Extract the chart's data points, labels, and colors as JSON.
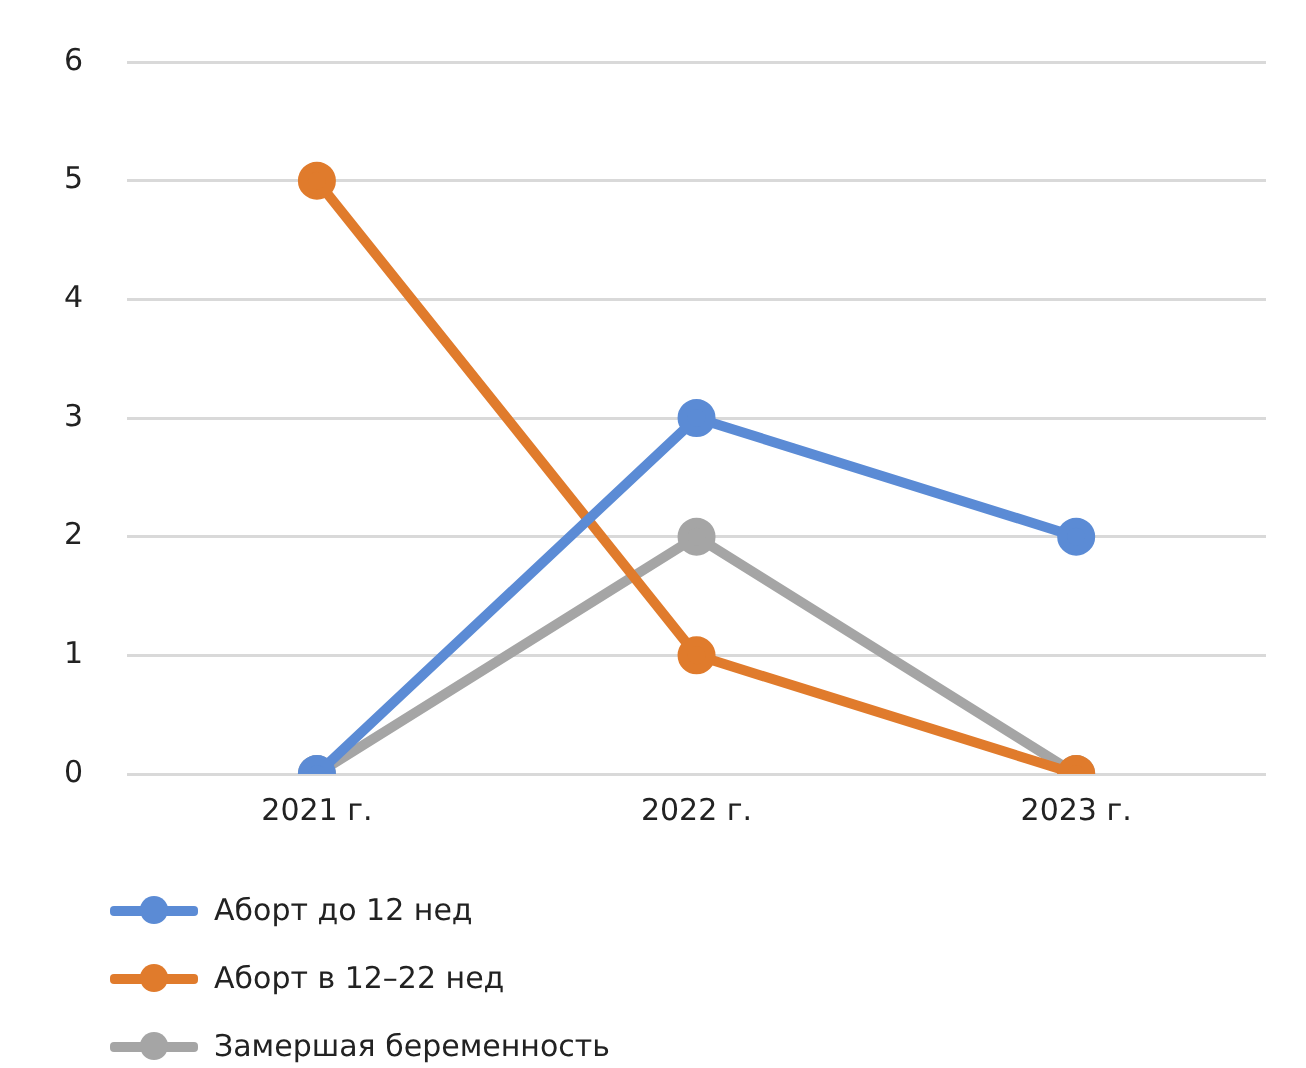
{
  "chart_data": {
    "type": "line",
    "categories": [
      "2021 г.",
      "2022 г.",
      "2023 г."
    ],
    "series": [
      {
        "name": "Аборт до 12 нед",
        "color": "#5b8bd5",
        "values": [
          0,
          3,
          2
        ]
      },
      {
        "name": "Аборт в 12–22 нед",
        "color": "#e07b2c",
        "values": [
          5,
          1,
          0
        ]
      },
      {
        "name": "Замершая беременность",
        "color": "#a5a5a5",
        "values": [
          0,
          2,
          0
        ]
      }
    ],
    "ylim": [
      0,
      6
    ],
    "yticks": [
      0,
      1,
      2,
      3,
      4,
      5,
      6
    ],
    "grid": "y",
    "legend": "bottom",
    "marker": "circle",
    "line_style": "solid"
  }
}
